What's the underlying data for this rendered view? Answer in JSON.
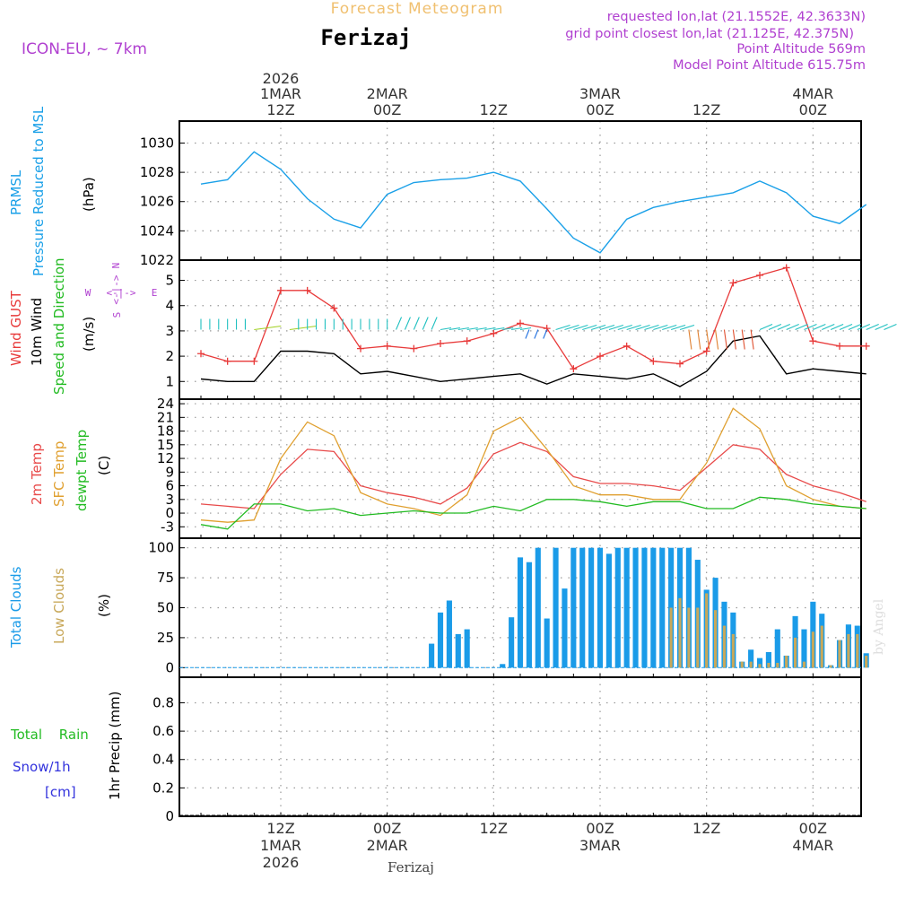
{
  "header": {
    "title": "Forecast Meteogram",
    "location": "Ferizaj",
    "model": "ICON-EU, ~ 7km",
    "requested": "requested lon,lat (21.1552E, 42.3633N)",
    "grid_point": "grid point closest lon,lat (21.125E, 42.375N)",
    "point_alt": "Point Altitude 569m",
    "model_alt": "Model Point Altitude 615.75m",
    "footer_location": "Ferizaj",
    "watermark": "by Angel"
  },
  "time_axis": {
    "top_year": "2026",
    "ticks": [
      {
        "top": "1MAR",
        "bottom_day": "1MAR",
        "hour": "12Z",
        "year": "2026"
      },
      {
        "top": "2MAR",
        "bottom_day": "2MAR",
        "hour": "00Z",
        "year": ""
      },
      {
        "top": "",
        "bottom_day": "",
        "hour": "12Z",
        "year": ""
      },
      {
        "top": "3MAR",
        "bottom_day": "3MAR",
        "hour": "00Z",
        "year": ""
      },
      {
        "top": "",
        "bottom_day": "",
        "hour": "12Z",
        "year": ""
      },
      {
        "top": "4MAR",
        "bottom_day": "4MAR",
        "hour": "00Z",
        "year": ""
      }
    ]
  },
  "labels": {
    "p1_a": "PRMSL",
    "p1_b": "Pressure Reduced to MSL",
    "p1_unit": "(hPa)",
    "p2_gust": "Wind GUST",
    "p2_wind": "10m Wind",
    "p2_dir": "Speed and Direction",
    "p2_unit": "(m/s)",
    "compass_n": "N",
    "compass_s": "S",
    "compass_w": "W",
    "compass_e": "E",
    "p3_t2m": "2m Temp",
    "p3_sfc": "SFC Temp",
    "p3_dew": "dewpt Temp",
    "p3_unit": "(C)",
    "p4_total": "Total Clouds",
    "p4_low": "Low Clouds",
    "p4_unit": "(%)",
    "p5_rain": "Total Rain",
    "p5_snow": "Snow/1h",
    "p5_cm": "[cm]",
    "p5_unit": "1hr Precip (mm)"
  },
  "colors": {
    "pressure": "#1aa0e8",
    "gust": "#e83a3a",
    "wind": "#000000",
    "temp2m": "#e84a4a",
    "sfc": "#e0a030",
    "dew": "#22bb22",
    "cloud_total": "#1a9be8",
    "cloud_low": "#c8a85a",
    "purple": "#b040d0",
    "grid": "#888888"
  },
  "chart_data": [
    {
      "type": "line",
      "title": "PRMSL Pressure Reduced to MSL",
      "ylabel": "hPa",
      "ylim": [
        1022,
        1031.5
      ],
      "yticks": [
        1022,
        1024,
        1026,
        1028,
        1030
      ],
      "x_hours": [
        0,
        3,
        6,
        9,
        12,
        15,
        18,
        21,
        24,
        27,
        30,
        33,
        36,
        39,
        42,
        45,
        48,
        51,
        54,
        57,
        60,
        63,
        66,
        69,
        72,
        75
      ],
      "series": [
        {
          "name": "PRMSL",
          "values": [
            1027.2,
            1027.5,
            1029.4,
            1028.2,
            1026.2,
            1024.8,
            1024.2,
            1026.5,
            1027.3,
            1027.5,
            1027.6,
            1028.0,
            1027.4,
            1025.5,
            1023.5,
            1022.5,
            1024.8,
            1025.6,
            1026.0,
            1026.3,
            1026.6,
            1027.4,
            1026.6,
            1025.0,
            1024.5,
            1025.8
          ]
        }
      ]
    },
    {
      "type": "line",
      "title": "Wind GUST / 10m Wind",
      "ylabel": "m/s",
      "ylim": [
        0.3,
        5.8
      ],
      "yticks": [
        1,
        2,
        3,
        4,
        5
      ],
      "x_hours": [
        0,
        3,
        6,
        9,
        12,
        15,
        18,
        21,
        24,
        27,
        30,
        33,
        36,
        39,
        42,
        45,
        48,
        51,
        54,
        57,
        60,
        63,
        66,
        69,
        72,
        75
      ],
      "series": [
        {
          "name": "Wind GUST",
          "values": [
            2.1,
            1.8,
            1.8,
            4.6,
            4.6,
            3.9,
            2.3,
            2.4,
            2.3,
            2.5,
            2.6,
            2.9,
            3.3,
            3.1,
            1.5,
            2.0,
            2.4,
            1.8,
            1.7,
            2.2,
            4.9,
            5.2,
            5.5,
            2.6,
            2.4,
            2.4
          ]
        },
        {
          "name": "10m Wind",
          "values": [
            1.1,
            1.0,
            1.0,
            2.2,
            2.2,
            2.1,
            1.3,
            1.4,
            1.2,
            1.0,
            1.1,
            1.2,
            1.3,
            0.9,
            1.3,
            1.2,
            1.1,
            1.3,
            0.8,
            1.4,
            2.6,
            2.8,
            1.3,
            1.5,
            1.4,
            1.3
          ]
        }
      ]
    },
    {
      "type": "line",
      "title": "2m Temp / SFC Temp / dewpt Temp",
      "ylabel": "C",
      "ylim": [
        -5.5,
        25
      ],
      "yticks": [
        -3,
        0,
        3,
        6,
        9,
        12,
        15,
        18,
        21,
        24
      ],
      "x_hours": [
        0,
        3,
        6,
        9,
        12,
        15,
        18,
        21,
        24,
        27,
        30,
        33,
        36,
        39,
        42,
        45,
        48,
        51,
        54,
        57,
        60,
        63,
        66,
        69,
        72,
        75
      ],
      "series": [
        {
          "name": "2m Temp",
          "values": [
            2.0,
            1.5,
            1.0,
            8.5,
            14.0,
            13.5,
            6.0,
            4.5,
            3.5,
            2.0,
            5.5,
            13.0,
            15.5,
            13.5,
            8.0,
            6.5,
            6.5,
            6.0,
            5.0,
            10.0,
            15.0,
            14.0,
            8.5,
            6.0,
            4.5,
            2.5
          ]
        },
        {
          "name": "SFC Temp",
          "values": [
            -1.5,
            -2.0,
            -1.5,
            12.0,
            20.0,
            17.0,
            4.5,
            2.0,
            1.0,
            -0.5,
            4.0,
            18.0,
            21.0,
            14.0,
            6.0,
            4.0,
            4.0,
            3.0,
            3.0,
            11.0,
            23.0,
            18.5,
            6.0,
            3.0,
            1.5,
            1.0
          ]
        },
        {
          "name": "dewpt Temp",
          "values": [
            -2.5,
            -3.5,
            2.0,
            2.0,
            0.5,
            1.0,
            -0.5,
            0.0,
            0.5,
            0.0,
            0.0,
            1.5,
            0.5,
            3.0,
            3.0,
            2.5,
            1.5,
            2.5,
            2.5,
            1.0,
            1.0,
            3.5,
            3.0,
            2.0,
            1.5,
            1.0
          ]
        }
      ]
    },
    {
      "type": "bar",
      "title": "Total Clouds / Low Clouds",
      "ylabel": "%",
      "ylim": [
        -8,
        108
      ],
      "yticks": [
        0,
        25,
        50,
        75,
        100
      ],
      "x_hours": [
        26,
        27,
        28,
        29,
        30,
        34,
        35,
        36,
        37,
        38,
        39,
        40,
        41,
        42,
        43,
        44,
        45,
        46,
        47,
        48,
        49,
        50,
        51,
        52,
        53,
        54,
        55,
        56,
        57,
        58,
        59,
        60,
        61,
        62,
        63,
        64,
        65,
        66,
        67,
        68,
        69,
        70,
        71,
        72,
        73,
        74,
        75,
        76,
        77
      ],
      "series": [
        {
          "name": "Total Clouds",
          "values": [
            20,
            46,
            56,
            28,
            32,
            3,
            42,
            92,
            88,
            100,
            41,
            100,
            66,
            100,
            100,
            100,
            100,
            95,
            100,
            100,
            100,
            100,
            100,
            100,
            100,
            100,
            100,
            90,
            65,
            75,
            55,
            46,
            5,
            15,
            8,
            13,
            32,
            10,
            43,
            32,
            55,
            45,
            2,
            23,
            36,
            35,
            12,
            0,
            0
          ]
        },
        {
          "name": "Low Clouds",
          "values": [
            0,
            0,
            0,
            0,
            0,
            0,
            0,
            0,
            0,
            0,
            0,
            0,
            0,
            0,
            0,
            0,
            0,
            0,
            0,
            0,
            0,
            0,
            0,
            0,
            50,
            58,
            50,
            50,
            62,
            48,
            35,
            28,
            5,
            5,
            3,
            4,
            4,
            10,
            25,
            5,
            30,
            35,
            2,
            23,
            28,
            28,
            10,
            0,
            0
          ]
        }
      ]
    },
    {
      "type": "line",
      "title": "1hr Precip",
      "ylabel": "1hr Precip (mm)",
      "ylim": [
        0,
        0.98
      ],
      "yticks": [
        0,
        0.2,
        0.4,
        0.6,
        0.8
      ],
      "series": [
        {
          "name": "Total Rain",
          "values": []
        },
        {
          "name": "Snow/1h",
          "values": []
        }
      ]
    }
  ]
}
